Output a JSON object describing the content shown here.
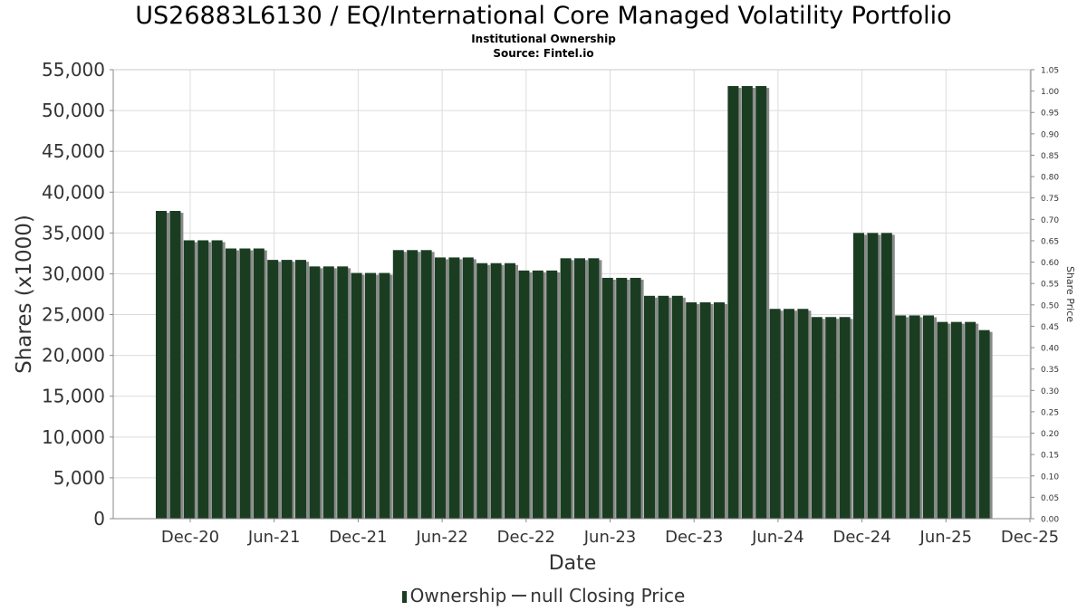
{
  "chart_data": {
    "type": "bar",
    "title": "US26883L6130 / EQ/International Core Managed Volatility Portfolio",
    "subtitle_lines": [
      "Institutional Ownership",
      "Source: Fintel.io"
    ],
    "xlabel": "Date",
    "ylabel": "Shares (x1000)",
    "y2label": "Share Price",
    "ylim": [
      0,
      55000
    ],
    "y_ticks": [
      "0",
      "5,000",
      "10,000",
      "15,000",
      "20,000",
      "25,000",
      "30,000",
      "35,000",
      "40,000",
      "45,000",
      "50,000",
      "55,000"
    ],
    "y2lim": [
      0,
      1.05
    ],
    "y2_ticks": [
      "0.00",
      "0.05",
      "0.10",
      "0.15",
      "0.20",
      "0.25",
      "0.30",
      "0.35",
      "0.40",
      "0.45",
      "0.50",
      "0.55",
      "0.60",
      "0.65",
      "0.70",
      "0.75",
      "0.80",
      "0.85",
      "0.90",
      "0.95",
      "1.00",
      "1.05"
    ],
    "x_ticks": [
      "Dec-20",
      "Jun-21",
      "Dec-21",
      "Jun-22",
      "Dec-22",
      "Jun-23",
      "Dec-23",
      "Jun-24",
      "Dec-24",
      "Jun-25",
      "Dec-25"
    ],
    "grid": true,
    "legend_position": "bottom",
    "legend": [
      "Ownership",
      "null Closing Price"
    ],
    "series": [
      {
        "name": "Ownership",
        "color": "#1a3d22",
        "values": [
          37700,
          37700,
          34100,
          34100,
          34100,
          33100,
          33100,
          33100,
          31700,
          31700,
          31700,
          30900,
          30900,
          30900,
          30100,
          30100,
          30100,
          32900,
          32900,
          32900,
          32000,
          32000,
          32000,
          31300,
          31300,
          31300,
          30400,
          30400,
          30400,
          31900,
          31900,
          31900,
          29500,
          29500,
          29500,
          27300,
          27300,
          27300,
          26500,
          26500,
          26500,
          53000,
          53000,
          53000,
          25700,
          25700,
          25700,
          24700,
          24700,
          24700,
          35000,
          35000,
          35000,
          24900,
          24900,
          24900,
          24100,
          24100,
          24100,
          23100
        ]
      }
    ]
  }
}
